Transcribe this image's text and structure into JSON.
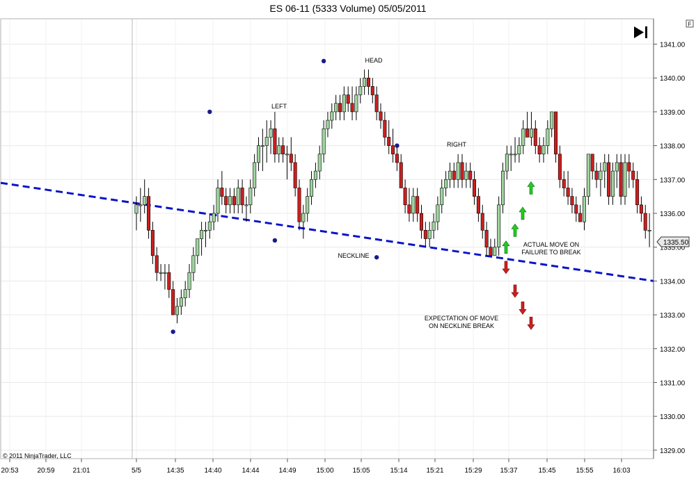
{
  "window": {
    "title": "ES 06-11 (5333 Volume)  05/05/2011",
    "copyright": "© 2011 NinjaTrader, LLC"
  },
  "toolbar": {
    "scroll_end_icon": "skip-to-end-icon",
    "f_label": "F"
  },
  "colors": {
    "up": "#9fd49f",
    "down": "#cc1f1f",
    "neckline": "#0a14c8",
    "marker": "#1a1a8c",
    "arrow_up": "#22cc22",
    "arrow_down": "#cc1f1f"
  },
  "chart_data": {
    "type": "candlestick",
    "title": "ES 06-11 (5333 Volume)  05/05/2011",
    "x_ticks": [
      "20:53",
      "20:59",
      "21:01",
      "5/5",
      "14:35",
      "14:40",
      "14:44",
      "14:49",
      "15:00",
      "15:05",
      "15:14",
      "15:21",
      "15:29",
      "15:37",
      "15:45",
      "15:55",
      "16:03"
    ],
    "y_ticks": [
      "1329.00",
      "1330.00",
      "1331.00",
      "1332.00",
      "1333.00",
      "1334.00",
      "1335.00",
      "1336.00",
      "1337.00",
      "1338.00",
      "1339.00",
      "1340.00",
      "1341.00"
    ],
    "ylim": [
      1328.75,
      1341.75
    ],
    "last_price": "1335.50",
    "grid": true,
    "candles": [
      {
        "o": 1336.0,
        "h": 1336.5,
        "l": 1335.5,
        "c": 1336.25
      },
      {
        "o": 1336.25,
        "h": 1336.75,
        "l": 1335.75,
        "c": 1336.25
      },
      {
        "o": 1336.25,
        "h": 1337.0,
        "l": 1336.0,
        "c": 1336.5
      },
      {
        "o": 1336.5,
        "h": 1336.75,
        "l": 1335.25,
        "c": 1335.5
      },
      {
        "o": 1335.5,
        "h": 1335.75,
        "l": 1334.5,
        "c": 1334.75
      },
      {
        "o": 1334.75,
        "h": 1335.0,
        "l": 1334.0,
        "c": 1334.25
      },
      {
        "o": 1334.25,
        "h": 1334.5,
        "l": 1334.0,
        "c": 1334.25
      },
      {
        "o": 1334.25,
        "h": 1334.5,
        "l": 1333.75,
        "c": 1334.25
      },
      {
        "o": 1334.25,
        "h": 1334.5,
        "l": 1333.5,
        "c": 1333.75
      },
      {
        "o": 1333.75,
        "h": 1334.0,
        "l": 1333.0,
        "c": 1333.0
      },
      {
        "o": 1333.0,
        "h": 1333.5,
        "l": 1332.75,
        "c": 1333.25
      },
      {
        "o": 1333.25,
        "h": 1333.75,
        "l": 1333.0,
        "c": 1333.5
      },
      {
        "o": 1333.5,
        "h": 1334.0,
        "l": 1333.25,
        "c": 1333.75
      },
      {
        "o": 1333.75,
        "h": 1334.5,
        "l": 1333.5,
        "c": 1334.25
      },
      {
        "o": 1334.25,
        "h": 1335.0,
        "l": 1334.0,
        "c": 1334.75
      },
      {
        "o": 1334.75,
        "h": 1335.25,
        "l": 1334.5,
        "c": 1335.25
      },
      {
        "o": 1335.25,
        "h": 1335.75,
        "l": 1334.75,
        "c": 1335.5
      },
      {
        "o": 1335.5,
        "h": 1335.75,
        "l": 1335.0,
        "c": 1335.5
      },
      {
        "o": 1335.5,
        "h": 1336.0,
        "l": 1335.25,
        "c": 1335.75
      },
      {
        "o": 1335.75,
        "h": 1336.25,
        "l": 1335.5,
        "c": 1336.0
      },
      {
        "o": 1336.0,
        "h": 1337.0,
        "l": 1335.75,
        "c": 1336.75
      },
      {
        "o": 1336.75,
        "h": 1337.25,
        "l": 1336.25,
        "c": 1336.5
      },
      {
        "o": 1336.5,
        "h": 1336.75,
        "l": 1336.0,
        "c": 1336.25
      },
      {
        "o": 1336.25,
        "h": 1336.75,
        "l": 1336.0,
        "c": 1336.5
      },
      {
        "o": 1336.5,
        "h": 1336.75,
        "l": 1336.0,
        "c": 1336.25
      },
      {
        "o": 1336.25,
        "h": 1337.0,
        "l": 1336.0,
        "c": 1336.75
      },
      {
        "o": 1336.75,
        "h": 1337.0,
        "l": 1336.0,
        "c": 1336.25
      },
      {
        "o": 1336.25,
        "h": 1336.5,
        "l": 1335.75,
        "c": 1336.25
      },
      {
        "o": 1336.25,
        "h": 1337.0,
        "l": 1336.0,
        "c": 1336.75
      },
      {
        "o": 1336.75,
        "h": 1337.75,
        "l": 1336.5,
        "c": 1337.5
      },
      {
        "o": 1337.5,
        "h": 1338.25,
        "l": 1337.25,
        "c": 1338.0
      },
      {
        "o": 1338.0,
        "h": 1338.5,
        "l": 1337.25,
        "c": 1338.0
      },
      {
        "o": 1338.0,
        "h": 1338.75,
        "l": 1337.5,
        "c": 1338.25
      },
      {
        "o": 1338.25,
        "h": 1338.75,
        "l": 1337.75,
        "c": 1338.5
      },
      {
        "o": 1338.5,
        "h": 1339.0,
        "l": 1337.5,
        "c": 1337.75
      },
      {
        "o": 1337.75,
        "h": 1338.25,
        "l": 1337.5,
        "c": 1338.0
      },
      {
        "o": 1338.0,
        "h": 1338.25,
        "l": 1337.5,
        "c": 1337.75
      },
      {
        "o": 1337.75,
        "h": 1338.0,
        "l": 1337.0,
        "c": 1337.75
      },
      {
        "o": 1337.75,
        "h": 1338.25,
        "l": 1337.25,
        "c": 1337.5
      },
      {
        "o": 1337.5,
        "h": 1337.75,
        "l": 1336.5,
        "c": 1336.75
      },
      {
        "o": 1336.75,
        "h": 1337.0,
        "l": 1335.5,
        "c": 1335.75
      },
      {
        "o": 1335.75,
        "h": 1336.25,
        "l": 1335.25,
        "c": 1336.0
      },
      {
        "o": 1336.0,
        "h": 1336.75,
        "l": 1335.75,
        "c": 1336.5
      },
      {
        "o": 1336.5,
        "h": 1337.25,
        "l": 1336.25,
        "c": 1337.0
      },
      {
        "o": 1337.0,
        "h": 1337.5,
        "l": 1336.75,
        "c": 1337.25
      },
      {
        "o": 1337.25,
        "h": 1338.0,
        "l": 1337.0,
        "c": 1337.75
      },
      {
        "o": 1337.75,
        "h": 1338.75,
        "l": 1337.5,
        "c": 1338.5
      },
      {
        "o": 1338.5,
        "h": 1339.0,
        "l": 1338.25,
        "c": 1338.75
      },
      {
        "o": 1338.75,
        "h": 1339.25,
        "l": 1338.5,
        "c": 1339.0
      },
      {
        "o": 1339.0,
        "h": 1339.5,
        "l": 1338.75,
        "c": 1339.25
      },
      {
        "o": 1339.25,
        "h": 1339.5,
        "l": 1338.75,
        "c": 1339.0
      },
      {
        "o": 1339.0,
        "h": 1339.75,
        "l": 1338.75,
        "c": 1339.5
      },
      {
        "o": 1339.5,
        "h": 1339.75,
        "l": 1339.0,
        "c": 1339.25
      },
      {
        "o": 1339.25,
        "h": 1339.75,
        "l": 1338.75,
        "c": 1339.0
      },
      {
        "o": 1339.0,
        "h": 1339.75,
        "l": 1338.75,
        "c": 1339.5
      },
      {
        "o": 1339.5,
        "h": 1340.0,
        "l": 1339.25,
        "c": 1339.75
      },
      {
        "o": 1339.75,
        "h": 1340.25,
        "l": 1339.5,
        "c": 1340.0
      },
      {
        "o": 1340.0,
        "h": 1340.25,
        "l": 1339.5,
        "c": 1339.75
      },
      {
        "o": 1339.75,
        "h": 1340.0,
        "l": 1339.25,
        "c": 1339.5
      },
      {
        "o": 1339.5,
        "h": 1339.75,
        "l": 1338.75,
        "c": 1339.0
      },
      {
        "o": 1339.0,
        "h": 1339.25,
        "l": 1338.5,
        "c": 1338.75
      },
      {
        "o": 1338.75,
        "h": 1339.0,
        "l": 1338.0,
        "c": 1338.25
      },
      {
        "o": 1338.25,
        "h": 1338.75,
        "l": 1337.75,
        "c": 1338.0
      },
      {
        "o": 1338.0,
        "h": 1338.5,
        "l": 1337.5,
        "c": 1337.75
      },
      {
        "o": 1337.75,
        "h": 1338.0,
        "l": 1337.25,
        "c": 1337.5
      },
      {
        "o": 1337.5,
        "h": 1337.75,
        "l": 1336.75,
        "c": 1336.75
      },
      {
        "o": 1336.75,
        "h": 1337.0,
        "l": 1336.0,
        "c": 1336.25
      },
      {
        "o": 1336.25,
        "h": 1336.75,
        "l": 1335.75,
        "c": 1336.0
      },
      {
        "o": 1336.0,
        "h": 1336.75,
        "l": 1335.75,
        "c": 1336.5
      },
      {
        "o": 1336.5,
        "h": 1336.75,
        "l": 1335.75,
        "c": 1336.0
      },
      {
        "o": 1336.0,
        "h": 1336.25,
        "l": 1335.25,
        "c": 1335.5
      },
      {
        "o": 1335.5,
        "h": 1335.75,
        "l": 1335.0,
        "c": 1335.25
      },
      {
        "o": 1335.25,
        "h": 1335.75,
        "l": 1335.0,
        "c": 1335.5
      },
      {
        "o": 1335.5,
        "h": 1336.0,
        "l": 1335.25,
        "c": 1335.75
      },
      {
        "o": 1335.75,
        "h": 1336.5,
        "l": 1335.5,
        "c": 1336.25
      },
      {
        "o": 1336.25,
        "h": 1337.0,
        "l": 1336.0,
        "c": 1336.75
      },
      {
        "o": 1336.75,
        "h": 1337.25,
        "l": 1336.5,
        "c": 1337.0
      },
      {
        "o": 1337.0,
        "h": 1337.5,
        "l": 1336.75,
        "c": 1337.25
      },
      {
        "o": 1337.25,
        "h": 1337.5,
        "l": 1336.75,
        "c": 1337.0
      },
      {
        "o": 1337.0,
        "h": 1337.75,
        "l": 1336.75,
        "c": 1337.5
      },
      {
        "o": 1337.5,
        "h": 1337.75,
        "l": 1336.75,
        "c": 1337.0
      },
      {
        "o": 1337.0,
        "h": 1337.5,
        "l": 1336.75,
        "c": 1337.25
      },
      {
        "o": 1337.25,
        "h": 1337.5,
        "l": 1336.75,
        "c": 1337.0
      },
      {
        "o": 1337.0,
        "h": 1337.25,
        "l": 1336.25,
        "c": 1336.5
      },
      {
        "o": 1336.5,
        "h": 1336.75,
        "l": 1335.75,
        "c": 1336.0
      },
      {
        "o": 1336.0,
        "h": 1336.25,
        "l": 1335.25,
        "c": 1335.5
      },
      {
        "o": 1335.5,
        "h": 1335.75,
        "l": 1334.75,
        "c": 1335.0
      },
      {
        "o": 1335.0,
        "h": 1335.25,
        "l": 1334.75,
        "c": 1334.75
      },
      {
        "o": 1334.75,
        "h": 1335.25,
        "l": 1334.75,
        "c": 1335.0
      },
      {
        "o": 1335.0,
        "h": 1336.5,
        "l": 1334.75,
        "c": 1336.25
      },
      {
        "o": 1336.25,
        "h": 1337.5,
        "l": 1336.0,
        "c": 1337.25
      },
      {
        "o": 1337.25,
        "h": 1338.0,
        "l": 1337.0,
        "c": 1337.75
      },
      {
        "o": 1337.75,
        "h": 1338.0,
        "l": 1337.25,
        "c": 1337.75
      },
      {
        "o": 1337.75,
        "h": 1338.25,
        "l": 1337.5,
        "c": 1337.75
      },
      {
        "o": 1337.75,
        "h": 1338.25,
        "l": 1337.5,
        "c": 1338.0
      },
      {
        "o": 1338.0,
        "h": 1338.75,
        "l": 1337.75,
        "c": 1338.5
      },
      {
        "o": 1338.5,
        "h": 1339.0,
        "l": 1338.25,
        "c": 1338.25
      },
      {
        "o": 1338.25,
        "h": 1339.0,
        "l": 1338.0,
        "c": 1338.5
      },
      {
        "o": 1338.5,
        "h": 1338.75,
        "l": 1337.75,
        "c": 1338.0
      },
      {
        "o": 1338.0,
        "h": 1338.25,
        "l": 1337.5,
        "c": 1337.75
      },
      {
        "o": 1337.75,
        "h": 1338.25,
        "l": 1337.5,
        "c": 1338.0
      },
      {
        "o": 1338.0,
        "h": 1338.75,
        "l": 1337.75,
        "c": 1338.5
      },
      {
        "o": 1338.5,
        "h": 1339.0,
        "l": 1338.25,
        "c": 1339.0
      },
      {
        "o": 1339.0,
        "h": 1339.0,
        "l": 1337.5,
        "c": 1337.75
      },
      {
        "o": 1337.75,
        "h": 1338.0,
        "l": 1336.75,
        "c": 1337.0
      },
      {
        "o": 1337.0,
        "h": 1337.25,
        "l": 1336.5,
        "c": 1336.75
      },
      {
        "o": 1336.75,
        "h": 1337.25,
        "l": 1336.25,
        "c": 1336.5
      },
      {
        "o": 1336.5,
        "h": 1336.75,
        "l": 1336.0,
        "c": 1336.25
      },
      {
        "o": 1336.25,
        "h": 1336.5,
        "l": 1335.75,
        "c": 1336.0
      },
      {
        "o": 1336.0,
        "h": 1336.25,
        "l": 1335.75,
        "c": 1335.75
      },
      {
        "o": 1335.75,
        "h": 1336.75,
        "l": 1335.5,
        "c": 1336.5
      },
      {
        "o": 1336.5,
        "h": 1337.75,
        "l": 1336.25,
        "c": 1337.75
      },
      {
        "o": 1337.75,
        "h": 1337.75,
        "l": 1337.0,
        "c": 1337.25
      },
      {
        "o": 1337.25,
        "h": 1337.5,
        "l": 1336.75,
        "c": 1337.0
      },
      {
        "o": 1337.0,
        "h": 1337.5,
        "l": 1336.5,
        "c": 1337.25
      },
      {
        "o": 1337.25,
        "h": 1337.75,
        "l": 1336.75,
        "c": 1337.5
      },
      {
        "o": 1337.5,
        "h": 1337.75,
        "l": 1336.25,
        "c": 1336.5
      },
      {
        "o": 1336.5,
        "h": 1337.5,
        "l": 1336.25,
        "c": 1337.25
      },
      {
        "o": 1337.25,
        "h": 1337.75,
        "l": 1336.75,
        "c": 1337.5
      },
      {
        "o": 1337.5,
        "h": 1337.75,
        "l": 1336.25,
        "c": 1336.5
      },
      {
        "o": 1336.5,
        "h": 1337.75,
        "l": 1336.25,
        "c": 1337.5
      },
      {
        "o": 1337.5,
        "h": 1337.75,
        "l": 1336.75,
        "c": 1337.25
      },
      {
        "o": 1337.25,
        "h": 1337.5,
        "l": 1336.75,
        "c": 1337.0
      },
      {
        "o": 1337.0,
        "h": 1337.25,
        "l": 1336.0,
        "c": 1336.25
      },
      {
        "o": 1336.25,
        "h": 1336.5,
        "l": 1335.75,
        "c": 1336.0
      },
      {
        "o": 1336.0,
        "h": 1336.25,
        "l": 1335.25,
        "c": 1335.5
      },
      {
        "o": 1335.5,
        "h": 1336.0,
        "l": 1335.0,
        "c": 1335.5
      }
    ],
    "neckline": {
      "x": [
        "20:53",
        "16:03+"
      ],
      "y": [
        1336.9,
        1334.0
      ],
      "style": "dashed"
    },
    "markers": [
      {
        "label": "LEFT",
        "bar": 18,
        "y": 1339.0
      },
      {
        "label": "HEAD",
        "bar": 46,
        "y": 1340.5
      },
      {
        "label": "RIGHT",
        "bar": 64,
        "y": 1338.0
      },
      {
        "label": "",
        "bar": 9,
        "y": 1332.5
      },
      {
        "label": "",
        "bar": 34,
        "y": 1335.2
      },
      {
        "label": "",
        "bar": 59,
        "y": 1334.7
      }
    ],
    "annotations": [
      {
        "text": "NECKLINE"
      },
      {
        "text": "EXPECTATION OF MOVE"
      },
      {
        "text": "ON NECKLINE BREAK"
      },
      {
        "text": "ACTUAL MOVE ON"
      },
      {
        "text": "FAILURE TO BREAK"
      }
    ],
    "arrows_up": [
      1335.0,
      1335.5,
      1336.0,
      1336.75
    ],
    "arrows_down": [
      1334.4,
      1333.7,
      1333.2,
      1332.75
    ]
  }
}
